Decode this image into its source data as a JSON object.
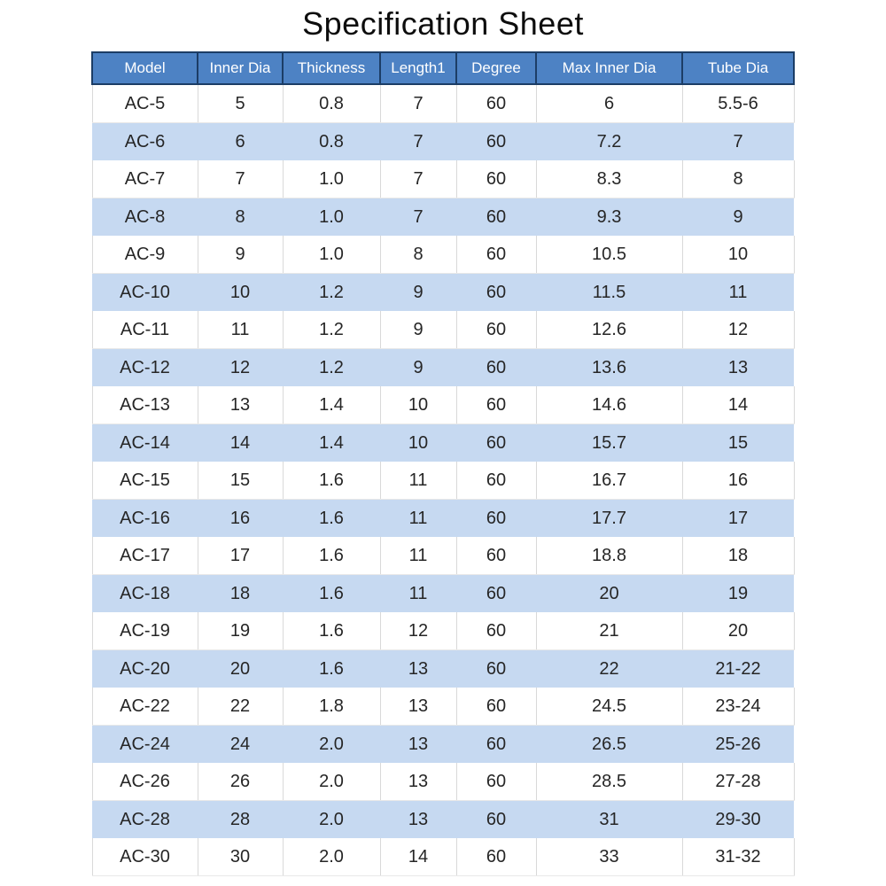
{
  "title": "Specification Sheet",
  "colors": {
    "header_bg": "#4d82c4",
    "header_border": "#1c3d66",
    "header_text": "#ffffff",
    "row_alt_bg": "#c6d9f1",
    "row_plain_bg": "#ffffff",
    "row_divider": "#d9d9d9",
    "body_text": "#262626",
    "title_text": "#0d0d0d"
  },
  "table": {
    "columns": [
      "Model",
      "Inner Dia",
      "Thickness",
      "Length1",
      "Degree",
      "Max Inner Dia",
      "Tube Dia"
    ],
    "rows": [
      [
        "AC-5",
        "5",
        "0.8",
        "7",
        "60",
        "6",
        "5.5-6"
      ],
      [
        "AC-6",
        "6",
        "0.8",
        "7",
        "60",
        "7.2",
        "7"
      ],
      [
        "AC-7",
        "7",
        "1.0",
        "7",
        "60",
        "8.3",
        "8"
      ],
      [
        "AC-8",
        "8",
        "1.0",
        "7",
        "60",
        "9.3",
        "9"
      ],
      [
        "AC-9",
        "9",
        "1.0",
        "8",
        "60",
        "10.5",
        "10"
      ],
      [
        "AC-10",
        "10",
        "1.2",
        "9",
        "60",
        "11.5",
        "11"
      ],
      [
        "AC-11",
        "11",
        "1.2",
        "9",
        "60",
        "12.6",
        "12"
      ],
      [
        "AC-12",
        "12",
        "1.2",
        "9",
        "60",
        "13.6",
        "13"
      ],
      [
        "AC-13",
        "13",
        "1.4",
        "10",
        "60",
        "14.6",
        "14"
      ],
      [
        "AC-14",
        "14",
        "1.4",
        "10",
        "60",
        "15.7",
        "15"
      ],
      [
        "AC-15",
        "15",
        "1.6",
        "11",
        "60",
        "16.7",
        "16"
      ],
      [
        "AC-16",
        "16",
        "1.6",
        "11",
        "60",
        "17.7",
        "17"
      ],
      [
        "AC-17",
        "17",
        "1.6",
        "11",
        "60",
        "18.8",
        "18"
      ],
      [
        "AC-18",
        "18",
        "1.6",
        "11",
        "60",
        "20",
        "19"
      ],
      [
        "AC-19",
        "19",
        "1.6",
        "12",
        "60",
        "21",
        "20"
      ],
      [
        "AC-20",
        "20",
        "1.6",
        "13",
        "60",
        "22",
        "21-22"
      ],
      [
        "AC-22",
        "22",
        "1.8",
        "13",
        "60",
        "24.5",
        "23-24"
      ],
      [
        "AC-24",
        "24",
        "2.0",
        "13",
        "60",
        "26.5",
        "25-26"
      ],
      [
        "AC-26",
        "26",
        "2.0",
        "13",
        "60",
        "28.5",
        "27-28"
      ],
      [
        "AC-28",
        "28",
        "2.0",
        "13",
        "60",
        "31",
        "29-30"
      ],
      [
        "AC-30",
        "30",
        "2.0",
        "14",
        "60",
        "33",
        "31-32"
      ]
    ]
  }
}
